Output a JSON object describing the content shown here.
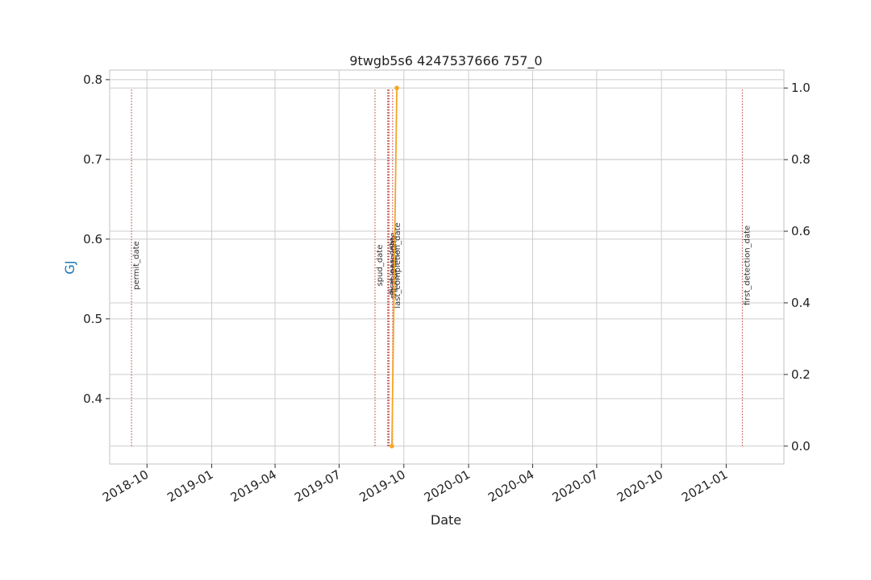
{
  "chart_data": {
    "type": "line",
    "title": "9twgb5s6 4247537666 757_0",
    "xlabel": "Date",
    "ylabel_left": "GJ",
    "ylabel_right": "",
    "x_tick_labels": [
      "2018-10",
      "2019-01",
      "2019-04",
      "2019-07",
      "2019-10",
      "2020-01",
      "2020-04",
      "2020-07",
      "2020-10",
      "2021-01"
    ],
    "x_tick_dates": [
      "2018-10-01",
      "2019-01-01",
      "2019-04-01",
      "2019-07-01",
      "2019-10-01",
      "2020-01-01",
      "2020-04-01",
      "2020-07-01",
      "2020-10-01",
      "2021-01-01"
    ],
    "xlim": [
      "2018-08-09",
      "2021-03-24"
    ],
    "left_y_ticks": [
      0.4,
      0.5,
      0.6,
      0.7,
      0.8
    ],
    "left_ylim": [
      0.318,
      0.812
    ],
    "right_y_ticks": [
      0.0,
      0.2,
      0.4,
      0.6,
      0.8,
      1.0
    ],
    "right_ylim": [
      -0.05,
      1.05
    ],
    "grid": true,
    "series": [
      {
        "axis": "right",
        "color": "#f5a623",
        "points": [
          {
            "x": "2019-09-14",
            "y": 0.0
          },
          {
            "x": "2019-09-21",
            "y": 1.0
          }
        ]
      }
    ],
    "event_lines": [
      {
        "label": "permit_date",
        "date": "2018-09-09"
      },
      {
        "label": "spud_date",
        "date": "2019-08-21"
      },
      {
        "label": "first_gas_date",
        "date": "2019-09-08"
      },
      {
        "label": "rig_release_date",
        "date": "2019-09-09"
      },
      {
        "label": "first_prod_date",
        "date": "2019-09-10"
      },
      {
        "label": "last_completion_date",
        "date": "2019-09-15"
      },
      {
        "label": "first_detection_date",
        "date": "2021-01-24"
      }
    ],
    "event_line_color": "#c0504d"
  }
}
